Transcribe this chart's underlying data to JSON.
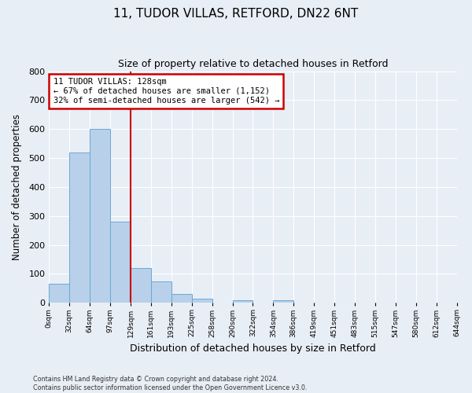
{
  "title": "11, TUDOR VILLAS, RETFORD, DN22 6NT",
  "subtitle": "Size of property relative to detached houses in Retford",
  "xlabel": "Distribution of detached houses by size in Retford",
  "ylabel": "Number of detached properties",
  "bar_color": "#b8d0ea",
  "bar_edge_color": "#6aaad4",
  "bg_color": "#e8eef6",
  "grid_color": "#ffffff",
  "bin_edges": [
    0,
    32,
    64,
    97,
    129,
    161,
    193,
    225,
    258,
    290,
    322,
    354,
    386,
    419,
    451,
    483,
    515,
    547,
    580,
    612,
    644
  ],
  "bin_labels": [
    "0sqm",
    "32sqm",
    "64sqm",
    "97sqm",
    "129sqm",
    "161sqm",
    "193sqm",
    "225sqm",
    "258sqm",
    "290sqm",
    "322sqm",
    "354sqm",
    "386sqm",
    "419sqm",
    "451sqm",
    "483sqm",
    "515sqm",
    "547sqm",
    "580sqm",
    "612sqm",
    "644sqm"
  ],
  "bar_heights": [
    65,
    520,
    600,
    280,
    120,
    75,
    30,
    15,
    0,
    10,
    0,
    10,
    0,
    0,
    0,
    0,
    0,
    0,
    0,
    0
  ],
  "ylim": [
    0,
    800
  ],
  "yticks": [
    0,
    100,
    200,
    300,
    400,
    500,
    600,
    700,
    800
  ],
  "property_line_x": 129,
  "property_line_color": "#cc0000",
  "annotation_title": "11 TUDOR VILLAS: 128sqm",
  "annotation_line1": "← 67% of detached houses are smaller (1,152)",
  "annotation_line2": "32% of semi-detached houses are larger (542) →",
  "annotation_box_color": "#ffffff",
  "annotation_box_edge": "#cc0000",
  "footer_line1": "Contains HM Land Registry data © Crown copyright and database right 2024.",
  "footer_line2": "Contains public sector information licensed under the Open Government Licence v3.0."
}
